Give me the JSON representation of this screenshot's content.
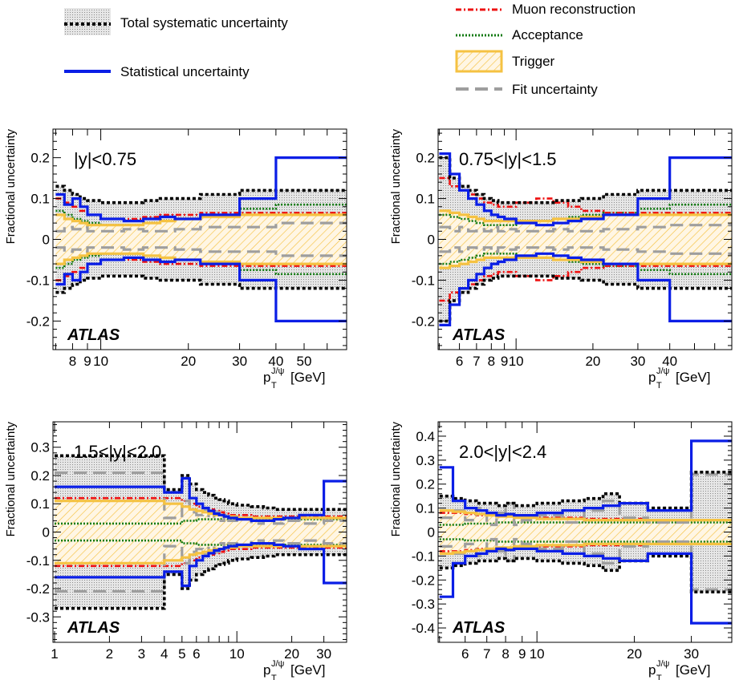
{
  "figure": {
    "legend_left": [
      {
        "key": "total_syst",
        "label": "Total systematic uncertainty"
      },
      {
        "key": "stat",
        "label": "Statistical uncertainty"
      }
    ],
    "legend_right": [
      {
        "key": "muon",
        "label": "Muon reconstruction"
      },
      {
        "key": "acc",
        "label": "Acceptance"
      },
      {
        "key": "trig",
        "label": "Trigger"
      },
      {
        "key": "fit",
        "label": "Fit uncertainty"
      }
    ],
    "colors": {
      "total_syst": "#000000",
      "total_fill": "#d4d4d4",
      "stat": "#0a1ee6",
      "muon": "#ee1111",
      "acc": "#117a11",
      "trig": "#f5c242",
      "trig_fill": "#fbe3b0",
      "fit": "#9e9e9e"
    }
  },
  "chart_data": [
    {
      "type": "line",
      "title": "|y|<0.75",
      "watermark": "ATLAS",
      "ylabel": "Fractional uncertainty",
      "xlabel_base": "p",
      "xlabel_sup": "J/ψ",
      "xlabel_sub": "T",
      "xlabel_unit": "[GeV]",
      "xscale": "log",
      "xlim": [
        6.85,
        70
      ],
      "ylim": [
        -0.27,
        0.27
      ],
      "xticks": [
        8,
        9,
        10,
        20,
        30,
        40,
        50
      ],
      "xticklabels": [
        "8",
        "9",
        "10",
        "20",
        "30",
        "40",
        "50"
      ],
      "yticks": [
        -0.2,
        -0.1,
        0,
        0.1,
        0.2
      ],
      "yticklabels": [
        "-0.2",
        "-0.1",
        "0",
        "0.1",
        "0.2"
      ],
      "bins": [
        7,
        7.5,
        8,
        8.5,
        9,
        10,
        12,
        14,
        16,
        18,
        22,
        30,
        40,
        70
      ],
      "series": {
        "stat": [
          0.11,
          0.085,
          0.1,
          0.08,
          0.06,
          0.05,
          0.045,
          0.05,
          0.055,
          0.05,
          0.06,
          0.1,
          0.2
        ],
        "total_syst": [
          0.13,
          0.12,
          0.11,
          0.1,
          0.095,
          0.09,
          0.09,
          0.095,
          0.1,
          0.1,
          0.11,
          0.12,
          0.12
        ],
        "muon": [
          0.1,
          0.09,
          0.08,
          0.07,
          0.06,
          0.05,
          0.05,
          0.055,
          0.06,
          0.06,
          0.065,
          0.065,
          0.065
        ],
        "acc": [
          0.07,
          0.06,
          0.05,
          0.045,
          0.04,
          0.035,
          0.035,
          0.04,
          0.045,
          0.05,
          0.06,
          0.075,
          0.085
        ],
        "trig": [
          0.06,
          0.05,
          0.045,
          0.04,
          0.035,
          0.035,
          0.035,
          0.04,
          0.045,
          0.05,
          0.055,
          0.06,
          0.06
        ],
        "fit": [
          0.02,
          0.03,
          0.025,
          0.03,
          0.02,
          0.02,
          0.025,
          0.02,
          0.02,
          0.025,
          0.03,
          0.03,
          0.04
        ]
      }
    },
    {
      "type": "line",
      "title": "0.75<|y|<1.5",
      "watermark": "ATLAS",
      "ylabel": "Fractional uncertainty",
      "xlabel_base": "p",
      "xlabel_sup": "J/ψ",
      "xlabel_sub": "T",
      "xlabel_unit": "[GeV]",
      "xscale": "log",
      "xlim": [
        4.95,
        70
      ],
      "ylim": [
        -0.27,
        0.27
      ],
      "xticks": [
        6,
        7,
        8,
        9,
        10,
        20,
        30,
        40
      ],
      "xticklabels": [
        "6",
        "7",
        "8",
        "9",
        "10",
        "20",
        "30",
        "40"
      ],
      "yticks": [
        -0.2,
        -0.1,
        0,
        0.1,
        0.2
      ],
      "yticklabels": [
        "-0.2",
        "-0.1",
        "0",
        "0.1",
        "0.2"
      ],
      "bins": [
        5,
        5.5,
        6,
        6.5,
        7,
        7.5,
        8,
        8.5,
        9,
        10,
        12,
        14,
        16,
        18,
        22,
        30,
        40,
        70
      ],
      "series": {
        "stat": [
          0.21,
          0.16,
          0.12,
          0.1,
          0.085,
          0.07,
          0.06,
          0.055,
          0.05,
          0.04,
          0.035,
          0.04,
          0.045,
          0.05,
          0.06,
          0.1,
          0.2
        ],
        "total_syst": [
          0.2,
          0.15,
          0.13,
          0.12,
          0.11,
          0.1,
          0.095,
          0.09,
          0.09,
          0.09,
          0.09,
          0.095,
          0.095,
          0.1,
          0.11,
          0.12,
          0.12
        ],
        "muon": [
          0.15,
          0.13,
          0.12,
          0.11,
          0.1,
          0.09,
          0.085,
          0.08,
          0.08,
          0.09,
          0.1,
          0.09,
          0.08,
          0.07,
          0.065,
          0.065,
          0.065
        ],
        "acc": [
          0.06,
          0.055,
          0.05,
          0.045,
          0.04,
          0.035,
          0.035,
          0.035,
          0.035,
          0.04,
          0.045,
          0.05,
          0.055,
          0.06,
          0.065,
          0.075,
          0.085
        ],
        "trig": [
          0.07,
          0.065,
          0.06,
          0.055,
          0.05,
          0.045,
          0.045,
          0.045,
          0.045,
          0.045,
          0.045,
          0.05,
          0.05,
          0.055,
          0.06,
          0.06,
          0.06
        ],
        "fit": [
          0.03,
          0.02,
          0.03,
          0.02,
          0.025,
          0.02,
          0.03,
          0.02,
          0.025,
          0.02,
          0.02,
          0.025,
          0.02,
          0.02,
          0.025,
          0.03,
          0.035
        ]
      }
    },
    {
      "type": "line",
      "title": "1.5<|y|<2.0",
      "watermark": "ATLAS",
      "ylabel": "Fractional uncertainty",
      "xlabel_base": "p",
      "xlabel_sup": "J/ψ",
      "xlabel_sub": "T",
      "xlabel_unit": "[GeV]",
      "xscale": "log",
      "xlim": [
        0.98,
        40
      ],
      "ylim": [
        -0.39,
        0.39
      ],
      "xticks": [
        1,
        2,
        3,
        4,
        5,
        6,
        10,
        20,
        30
      ],
      "xticklabels": [
        "1",
        "2",
        "3",
        "4",
        "5",
        "6",
        "10",
        "20",
        "30"
      ],
      "yticks": [
        -0.3,
        -0.2,
        -0.1,
        0,
        0.1,
        0.2,
        0.3
      ],
      "yticklabels": [
        "-0.3",
        "-0.2",
        "-0.1",
        "0",
        "0.1",
        "0.2",
        "0.3"
      ],
      "bins": [
        1,
        4,
        5,
        5.5,
        6,
        6.5,
        7,
        7.5,
        8,
        8.5,
        9,
        10,
        12,
        14,
        16,
        18,
        22,
        30,
        40
      ],
      "series": {
        "stat": [
          0.16,
          0.14,
          0.19,
          0.12,
          0.1,
          0.085,
          0.075,
          0.065,
          0.06,
          0.055,
          0.05,
          0.045,
          0.04,
          0.04,
          0.045,
          0.05,
          0.06,
          0.18
        ],
        "total_syst": [
          0.27,
          0.15,
          0.2,
          0.17,
          0.15,
          0.14,
          0.13,
          0.12,
          0.115,
          0.11,
          0.1,
          0.095,
          0.09,
          0.085,
          0.08,
          0.08,
          0.08,
          0.08
        ],
        "muon": [
          0.12,
          0.12,
          0.11,
          0.1,
          0.09,
          0.085,
          0.08,
          0.075,
          0.07,
          0.065,
          0.06,
          0.06,
          0.055,
          0.055,
          0.055,
          0.055,
          0.055,
          0.055
        ],
        "acc": [
          0.03,
          0.03,
          0.04,
          0.04,
          0.045,
          0.045,
          0.045,
          0.045,
          0.045,
          0.045,
          0.045,
          0.045,
          0.045,
          0.045,
          0.045,
          0.045,
          0.045,
          0.045
        ],
        "trig": [
          0.11,
          0.1,
          0.09,
          0.08,
          0.075,
          0.07,
          0.065,
          0.06,
          0.06,
          0.055,
          0.055,
          0.05,
          0.05,
          0.05,
          0.05,
          0.05,
          0.05,
          0.05
        ],
        "fit": [
          0.21,
          0.05,
          0.11,
          0.07,
          0.06,
          0.08,
          0.05,
          0.07,
          0.04,
          0.06,
          0.04,
          0.05,
          0.03,
          0.04,
          0.03,
          0.04,
          0.03,
          0.04
        ]
      }
    },
    {
      "type": "line",
      "title": "2.0<|y|<2.4",
      "watermark": "ATLAS",
      "ylabel": "Fractional uncertainty",
      "xlabel_base": "p",
      "xlabel_sup": "J/ψ",
      "xlabel_sub": "T",
      "xlabel_unit": "[GeV]",
      "xscale": "log",
      "xlim": [
        4.95,
        40
      ],
      "ylim": [
        -0.46,
        0.46
      ],
      "xticks": [
        6,
        7,
        8,
        9,
        10,
        20,
        30
      ],
      "xticklabels": [
        "6",
        "7",
        "8",
        "9",
        "10",
        "20",
        "30"
      ],
      "yticks": [
        -0.4,
        -0.3,
        -0.2,
        -0.1,
        0,
        0.1,
        0.2,
        0.3,
        0.4
      ],
      "yticklabels": [
        "-0.4",
        "-0.3",
        "-0.2",
        "-0.1",
        "0",
        "0.1",
        "0.2",
        "0.3",
        "0.4"
      ],
      "bins": [
        5,
        5.5,
        6,
        6.5,
        7,
        7.5,
        8,
        8.5,
        9,
        10,
        12,
        14,
        16,
        18,
        22,
        30,
        40
      ],
      "series": {
        "stat": [
          0.27,
          0.13,
          0.1,
          0.09,
          0.08,
          0.07,
          0.075,
          0.07,
          0.07,
          0.08,
          0.09,
          0.1,
          0.11,
          0.12,
          0.09,
          0.38
        ],
        "total_syst": [
          0.15,
          0.14,
          0.13,
          0.12,
          0.12,
          0.11,
          0.12,
          0.11,
          0.11,
          0.12,
          0.13,
          0.14,
          0.16,
          0.12,
          0.1,
          0.25
        ],
        "muon": [
          0.08,
          0.08,
          0.075,
          0.07,
          0.07,
          0.065,
          0.065,
          0.06,
          0.06,
          0.06,
          0.06,
          0.055,
          0.055,
          0.055,
          0.05,
          0.05
        ],
        "acc": [
          0.03,
          0.03,
          0.035,
          0.035,
          0.035,
          0.04,
          0.04,
          0.04,
          0.04,
          0.04,
          0.04,
          0.04,
          0.04,
          0.04,
          0.04,
          0.04
        ],
        "trig": [
          0.09,
          0.085,
          0.08,
          0.075,
          0.07,
          0.065,
          0.065,
          0.06,
          0.06,
          0.055,
          0.055,
          0.05,
          0.05,
          0.05,
          0.05,
          0.05
        ],
        "fit": [
          0.06,
          0.09,
          0.05,
          0.1,
          0.03,
          0.08,
          0.12,
          0.03,
          0.05,
          0.07,
          0.04,
          0.09,
          0.13,
          0.06,
          0.04,
          0.24
        ]
      }
    }
  ]
}
